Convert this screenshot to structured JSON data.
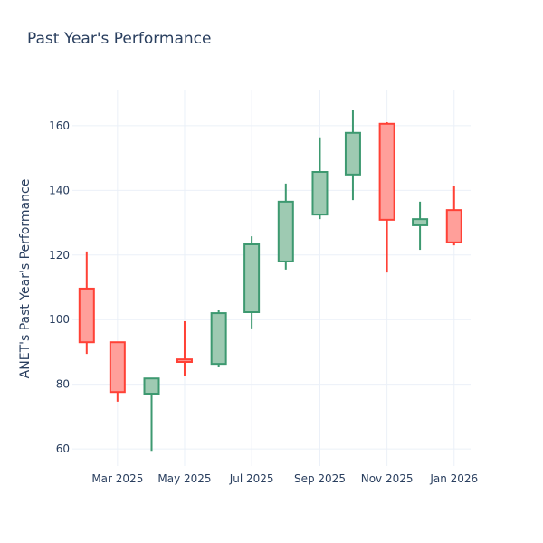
{
  "chart_data": {
    "type": "candlestick",
    "title": "Past Year's Performance",
    "xlabel": "",
    "ylabel": "ANET's Past Year's Performance",
    "x_type": "date",
    "xlim": [
      "2025-01-19",
      "2026-01-16"
    ],
    "ylim": [
      54.7,
      170.9
    ],
    "grid": true,
    "x_ticks": [
      {
        "date": "2025-03-01",
        "label": "Mar 2025"
      },
      {
        "date": "2025-05-01",
        "label": "May 2025"
      },
      {
        "date": "2025-07-01",
        "label": "Jul 2025"
      },
      {
        "date": "2025-09-01",
        "label": "Sep 2025"
      },
      {
        "date": "2025-11-01",
        "label": "Nov 2025"
      },
      {
        "date": "2026-01-01",
        "label": "Jan 2026"
      }
    ],
    "y_ticks": [
      60,
      80,
      100,
      120,
      140,
      160
    ],
    "colors": {
      "increasing": "#3d9970",
      "increasing_fill": "#9ecab2",
      "decreasing": "#ff4136",
      "decreasing_fill": "#ff9f9a",
      "grid": "#ebf0f8"
    },
    "candles": [
      {
        "date": "2025-02-01",
        "open": 109.6,
        "high": 121.1,
        "low": 89.4,
        "close": 93.0
      },
      {
        "date": "2025-03-01",
        "open": 93.0,
        "high": 93.0,
        "low": 74.6,
        "close": 77.6
      },
      {
        "date": "2025-04-01",
        "open": 77.1,
        "high": 81.8,
        "low": 59.4,
        "close": 81.8
      },
      {
        "date": "2025-05-01",
        "open": 87.7,
        "high": 99.5,
        "low": 82.7,
        "close": 86.9
      },
      {
        "date": "2025-06-01",
        "open": 86.3,
        "high": 103.1,
        "low": 85.5,
        "close": 102.0
      },
      {
        "date": "2025-07-01",
        "open": 102.3,
        "high": 125.8,
        "low": 97.3,
        "close": 123.3
      },
      {
        "date": "2025-08-01",
        "open": 118.0,
        "high": 142.1,
        "low": 115.5,
        "close": 136.5
      },
      {
        "date": "2025-09-01",
        "open": 132.5,
        "high": 156.4,
        "low": 131.1,
        "close": 145.7
      },
      {
        "date": "2025-10-01",
        "open": 144.9,
        "high": 165.0,
        "low": 137.0,
        "close": 157.8
      },
      {
        "date": "2025-11-01",
        "open": 160.6,
        "high": 161.1,
        "low": 114.6,
        "close": 130.9
      },
      {
        "date": "2025-12-01",
        "open": 129.2,
        "high": 136.5,
        "low": 121.6,
        "close": 131.1
      },
      {
        "date": "2026-01-01",
        "open": 133.9,
        "high": 141.5,
        "low": 123.0,
        "close": 123.9
      }
    ]
  }
}
